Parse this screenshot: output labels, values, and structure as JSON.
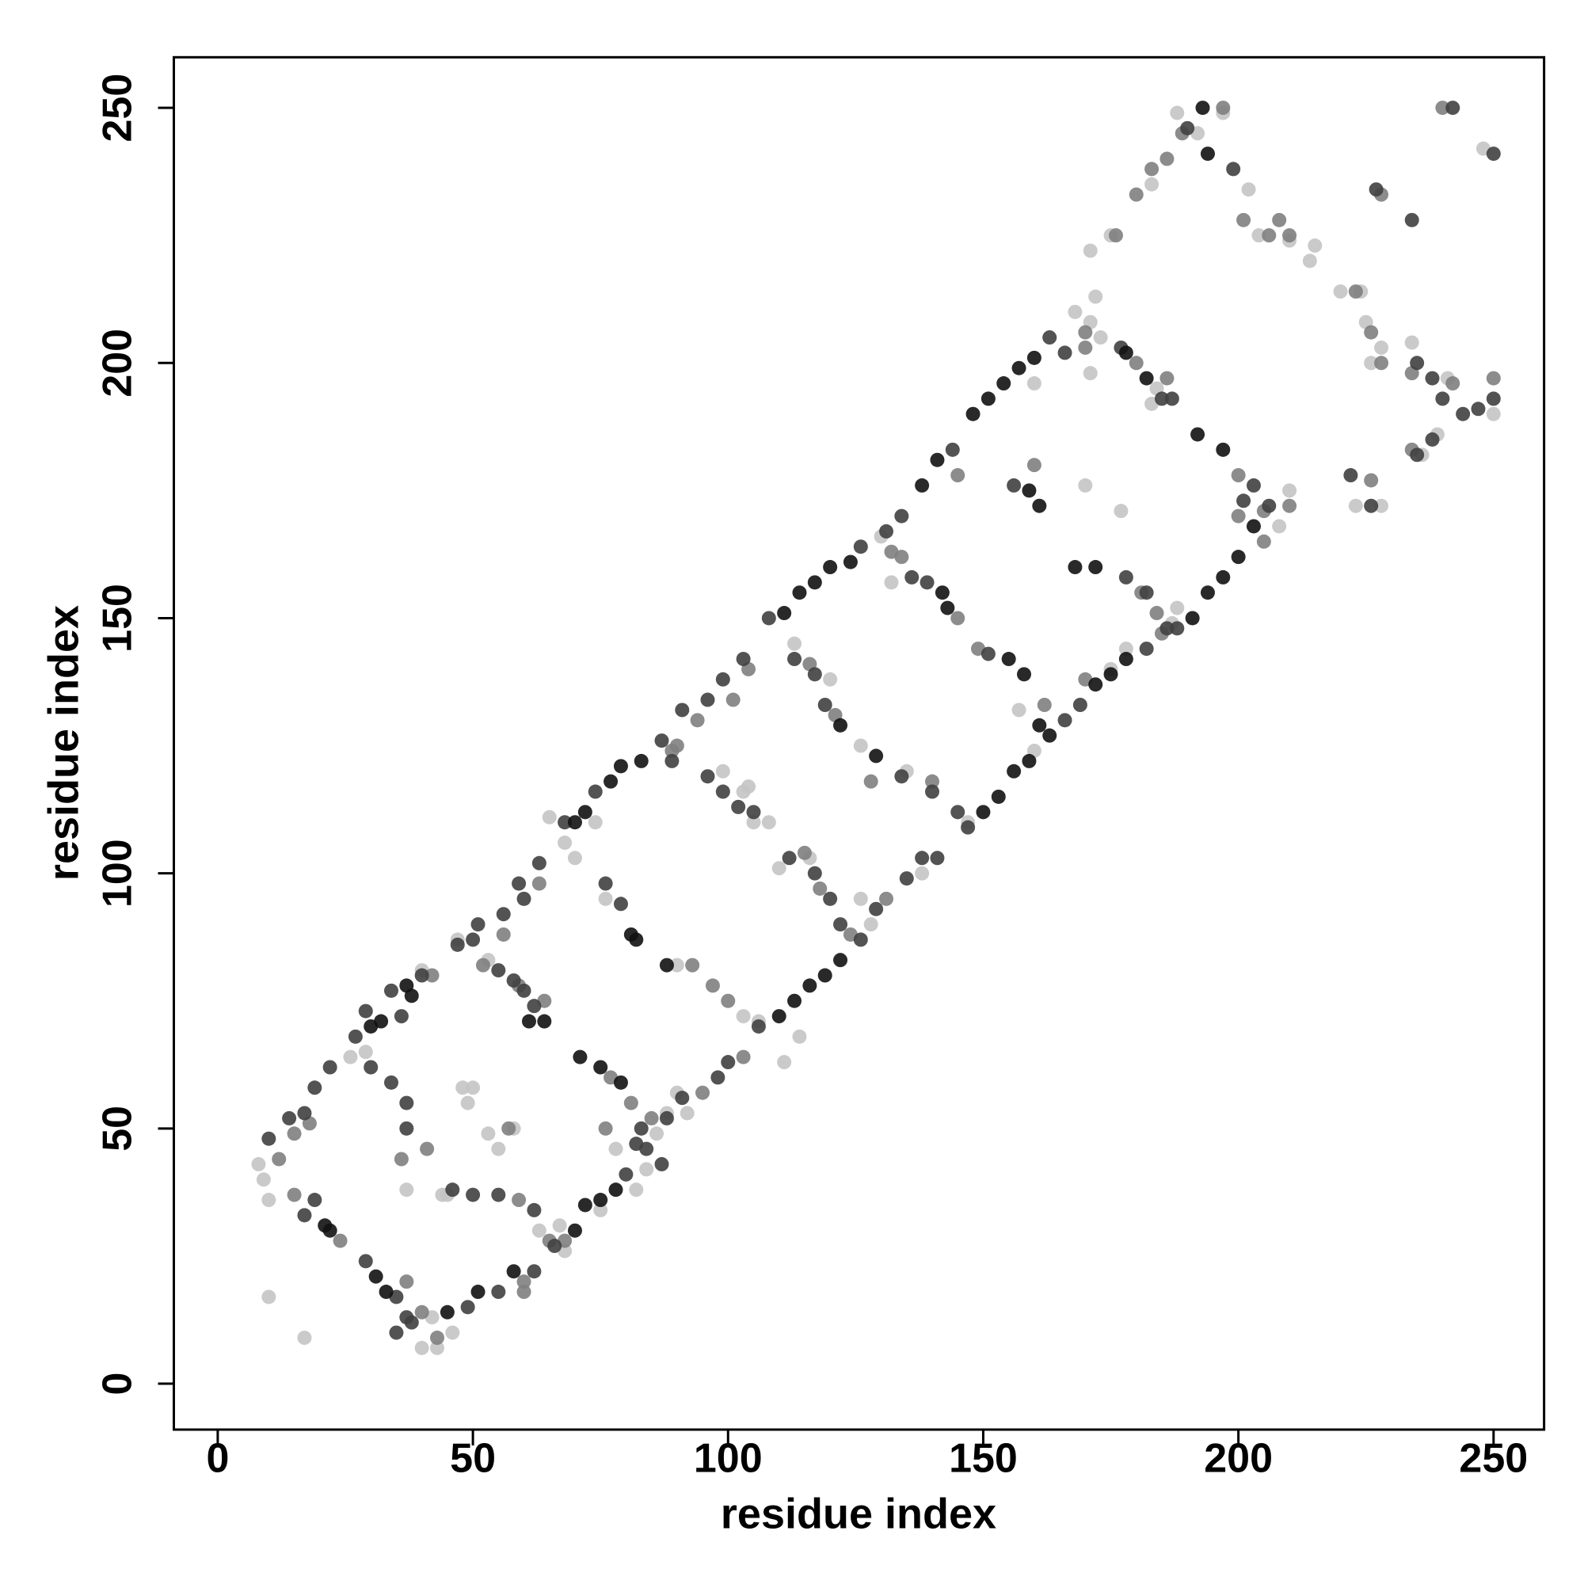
{
  "chart_data": {
    "type": "scatter",
    "xlabel": "residue index",
    "ylabel": "residue index",
    "xlim": [
      -8.6,
      259.9
    ],
    "ylim": [
      -9,
      259.9
    ],
    "xticks": [
      0,
      50,
      100,
      150,
      200,
      250
    ],
    "yticks": [
      0,
      50,
      100,
      150,
      200,
      250
    ],
    "series": [
      {
        "color": "#c4c4c4",
        "x": [
          8,
          9,
          10,
          10,
          17,
          40,
          43,
          47,
          53,
          49,
          50,
          58,
          45,
          55,
          63,
          68,
          75,
          82,
          42,
          46,
          76,
          68,
          70,
          74,
          65,
          88,
          90,
          84,
          92,
          99,
          103,
          111,
          106,
          113,
          120,
          126,
          132,
          135,
          128,
          138,
          147,
          157,
          160,
          170,
          177,
          171,
          172,
          173,
          168,
          171,
          175,
          171,
          183,
          188,
          192,
          197,
          202,
          204,
          210,
          214,
          215,
          220,
          224,
          225,
          226,
          228,
          234,
          236,
          239,
          241,
          248,
          250,
          223,
          228,
          210,
          208,
          187,
          188,
          175,
          178,
          160,
          183,
          184,
          130,
          116,
          110,
          105,
          104,
          26,
          29,
          37,
          44,
          48,
          53,
          67,
          78,
          86,
          90,
          103,
          114,
          126,
          40,
          108
        ],
        "values": [
          43,
          40,
          36,
          17,
          9,
          7,
          7,
          87,
          83,
          55,
          58,
          50,
          37,
          46,
          30,
          26,
          34,
          38,
          13,
          10,
          95,
          106,
          103,
          110,
          111,
          53,
          57,
          42,
          53,
          120,
          116,
          63,
          71,
          145,
          138,
          125,
          157,
          120,
          90,
          100,
          110,
          132,
          124,
          176,
          171,
          208,
          213,
          205,
          210,
          198,
          225,
          222,
          235,
          249,
          245,
          249,
          234,
          225,
          224,
          220,
          223,
          214,
          214,
          208,
          200,
          203,
          204,
          182,
          186,
          197,
          242,
          190,
          172,
          172,
          175,
          168,
          149,
          152,
          140,
          144,
          196,
          192,
          195,
          166,
          103,
          101,
          110,
          117,
          64,
          65,
          38,
          37,
          58,
          49,
          31,
          46,
          49,
          82,
          72,
          68,
          95,
          81,
          110
        ]
      },
      {
        "color": "#808080",
        "x": [
          12,
          15,
          18,
          42,
          56,
          63,
          89,
          94,
          101,
          104,
          132,
          145,
          170,
          40,
          43,
          60,
          68,
          95,
          103,
          131,
          170,
          185,
          210,
          15,
          24,
          37,
          36,
          41,
          57,
          59,
          64,
          52,
          59,
          77,
          81,
          76,
          85,
          90,
          93,
          97,
          100,
          115,
          118,
          124,
          116,
          121,
          140,
          128,
          134,
          145,
          149,
          162,
          160,
          180,
          186,
          200,
          200,
          205,
          181,
          184,
          189,
          197,
          201,
          206,
          210,
          223,
          226,
          228,
          234,
          250,
          242,
          234,
          226,
          205,
          170,
          176,
          180,
          183,
          186,
          208,
          240,
          228,
          60,
          65
        ],
        "values": [
          44,
          49,
          51,
          80,
          88,
          98,
          124,
          130,
          134,
          140,
          163,
          178,
          203,
          14,
          9,
          18,
          28,
          57,
          64,
          95,
          138,
          147,
          172,
          37,
          28,
          20,
          44,
          46,
          50,
          78,
          75,
          82,
          36,
          60,
          55,
          50,
          52,
          125,
          82,
          78,
          75,
          104,
          97,
          88,
          141,
          131,
          118,
          118,
          162,
          150,
          144,
          133,
          180,
          200,
          197,
          178,
          170,
          165,
          155,
          151,
          245,
          250,
          228,
          225,
          225,
          214,
          206,
          200,
          198,
          197,
          196,
          183,
          177,
          171,
          206,
          225,
          233,
          238,
          240,
          228,
          250,
          233,
          20,
          28
        ]
      },
      {
        "color": "#404040",
        "x": [
          10,
          14,
          17,
          19,
          22,
          27,
          29,
          34,
          36,
          40,
          47,
          50,
          51,
          56,
          59,
          60,
          63,
          68,
          74,
          87,
          91,
          96,
          99,
          103,
          108,
          126,
          131,
          134,
          144,
          163,
          166,
          35,
          38,
          49,
          55,
          62,
          66,
          80,
          84,
          88,
          91,
          98,
          100,
          106,
          126,
          129,
          135,
          138,
          141,
          147,
          166,
          169,
          182,
          188,
          206,
          17,
          19,
          29,
          35,
          37,
          30,
          34,
          37,
          37,
          55,
          58,
          60,
          62,
          46,
          50,
          55,
          62,
          76,
          79,
          89,
          96,
          99,
          102,
          105,
          112,
          117,
          120,
          122,
          113,
          117,
          119,
          134,
          140,
          145,
          136,
          139,
          151,
          156,
          177,
          185,
          187,
          201,
          203,
          178,
          182,
          186,
          190,
          199,
          235,
          238,
          240,
          244,
          247,
          250,
          250,
          242,
          238,
          235,
          227,
          234,
          222,
          226,
          83,
          82,
          87
        ],
        "values": [
          48,
          52,
          53,
          58,
          62,
          68,
          73,
          77,
          72,
          80,
          86,
          87,
          90,
          92,
          98,
          95,
          102,
          110,
          116,
          126,
          132,
          134,
          138,
          142,
          150,
          164,
          167,
          170,
          183,
          205,
          202,
          10,
          12,
          15,
          18,
          22,
          27,
          41,
          46,
          52,
          56,
          60,
          63,
          70,
          87,
          93,
          99,
          103,
          103,
          109,
          130,
          133,
          144,
          148,
          172,
          33,
          36,
          24,
          17,
          13,
          62,
          59,
          55,
          50,
          81,
          79,
          77,
          74,
          38,
          37,
          37,
          34,
          98,
          94,
          122,
          119,
          116,
          113,
          112,
          103,
          100,
          95,
          90,
          142,
          139,
          133,
          119,
          116,
          112,
          158,
          157,
          143,
          176,
          203,
          193,
          193,
          173,
          176,
          158,
          155,
          148,
          246,
          238,
          200,
          197,
          193,
          190,
          191,
          193,
          241,
          250,
          185,
          182,
          234,
          228,
          178,
          172,
          50,
          47,
          43
        ]
      },
      {
        "color": "#121212",
        "x": [
          21,
          22,
          31,
          33,
          30,
          32,
          37,
          38,
          45,
          51,
          58,
          70,
          72,
          75,
          78,
          70,
          72,
          77,
          79,
          83,
          71,
          75,
          79,
          81,
          82,
          88,
          110,
          113,
          116,
          119,
          122,
          111,
          114,
          117,
          120,
          124,
          122,
          129,
          138,
          141,
          148,
          151,
          154,
          157,
          160,
          150,
          153,
          156,
          159,
          163,
          155,
          158,
          161,
          172,
          175,
          178,
          168,
          172,
          159,
          178,
          182,
          192,
          197,
          191,
          194,
          197,
          200,
          203,
          193,
          194,
          143,
          142,
          161,
          61,
          64
        ],
        "values": [
          31,
          30,
          21,
          18,
          70,
          71,
          78,
          76,
          14,
          18,
          22,
          30,
          35,
          36,
          38,
          110,
          112,
          118,
          121,
          122,
          64,
          62,
          59,
          88,
          87,
          82,
          72,
          75,
          78,
          80,
          83,
          151,
          155,
          157,
          160,
          161,
          129,
          123,
          176,
          181,
          190,
          193,
          196,
          199,
          201,
          112,
          115,
          120,
          122,
          127,
          142,
          139,
          129,
          137,
          139,
          142,
          160,
          160,
          175,
          202,
          197,
          186,
          183,
          150,
          155,
          158,
          162,
          168,
          250,
          241,
          152,
          155,
          172,
          71,
          71
        ]
      }
    ]
  }
}
